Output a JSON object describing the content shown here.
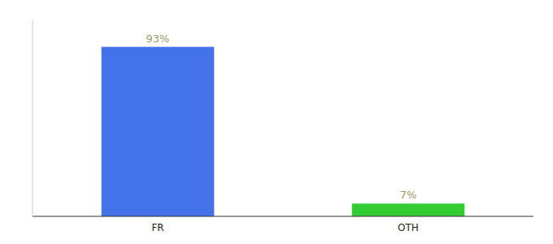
{
  "chart_data": {
    "type": "bar",
    "categories": [
      "FR",
      "OTH"
    ],
    "values": [
      93,
      7
    ],
    "value_labels": [
      "93%",
      "7%"
    ],
    "colors": [
      "#4472e8",
      "#33cc33"
    ],
    "ylim": [
      0,
      108
    ],
    "data_labels": true,
    "tick_labels": "x",
    "grid": false
  }
}
